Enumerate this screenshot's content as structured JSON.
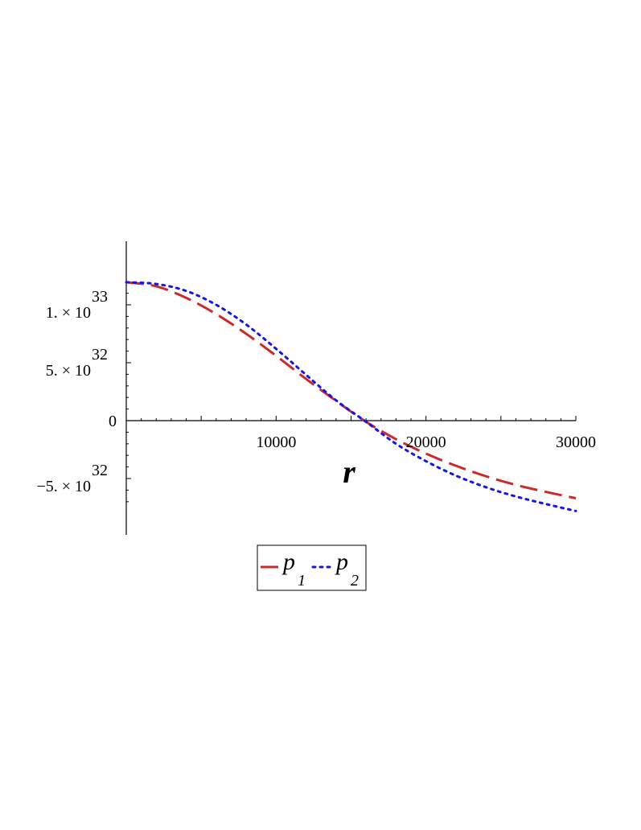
{
  "chart_data": {
    "type": "line",
    "xlabel": "r",
    "ylabel": "",
    "xlim": [
      0,
      30000
    ],
    "ylim": [
      -7.5e+32,
      1.2e+33
    ],
    "x_ticks": [
      {
        "value": 10000,
        "label": "10000"
      },
      {
        "value": 20000,
        "label": "20000"
      },
      {
        "value": 30000,
        "label": "30000"
      }
    ],
    "y_ticks": [
      {
        "value": 1e+33,
        "mantissa": "1. × 10",
        "exponent": "33"
      },
      {
        "value": 5e+32,
        "mantissa": "5. × 10",
        "exponent": "32"
      },
      {
        "value": 0,
        "mantissa": "0",
        "exponent": ""
      },
      {
        "value": -5e+32,
        "mantissa": "−5. × 10",
        "exponent": "32"
      }
    ],
    "grid": false,
    "legend_position": "bottom",
    "series": [
      {
        "name": "p",
        "subscript": "1",
        "color": "#cc2a2a",
        "style": "dashed",
        "points": [
          [
            0,
            1.195e+33
          ],
          [
            2000,
            1.16e+33
          ],
          [
            4000,
            1.06e+33
          ],
          [
            6000,
            9.2e+32
          ],
          [
            8000,
            7.5e+32
          ],
          [
            10000,
            5.6e+32
          ],
          [
            12000,
            3.6e+32
          ],
          [
            14000,
            1.7e+32
          ],
          [
            16000,
            -1e+31
          ],
          [
            18000,
            -1.6e+32
          ],
          [
            20000,
            -2.85e+32
          ],
          [
            22000,
            -3.9e+32
          ],
          [
            24000,
            -4.8e+32
          ],
          [
            26000,
            -5.55e+32
          ],
          [
            28000,
            -6.15e+32
          ],
          [
            30000,
            -6.7e+32
          ]
        ]
      },
      {
        "name": "p",
        "subscript": "2",
        "color": "#1515e8",
        "style": "dotted",
        "points": [
          [
            0,
            1.195e+33
          ],
          [
            2000,
            1.18e+33
          ],
          [
            4000,
            1.12e+33
          ],
          [
            6000,
            1e+33
          ],
          [
            8000,
            8.3e+32
          ],
          [
            10000,
            6.2e+32
          ],
          [
            12000,
            3.95e+32
          ],
          [
            14000,
            1.75e+32
          ],
          [
            16000,
            -1e+31
          ],
          [
            18000,
            -2e+32
          ],
          [
            20000,
            -3.5e+32
          ],
          [
            22000,
            -4.75e+32
          ],
          [
            24000,
            -5.75e+32
          ],
          [
            26000,
            -6.55e+32
          ],
          [
            28000,
            -7.2e+32
          ],
          [
            30000,
            -7.8e+32
          ]
        ]
      }
    ]
  }
}
